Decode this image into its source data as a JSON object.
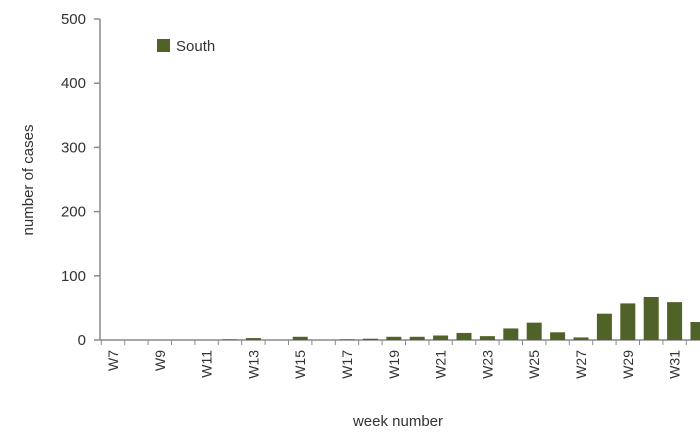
{
  "chart_data": {
    "type": "bar",
    "title": "",
    "xlabel": "week number",
    "ylabel": "number of cases",
    "ylim": [
      0,
      500
    ],
    "yticks": [
      0,
      100,
      200,
      300,
      400,
      500
    ],
    "legend_position": "top-left",
    "grid": false,
    "categories": [
      "W7",
      "W8",
      "W9",
      "W10",
      "W11",
      "W12",
      "W13",
      "W14",
      "W15",
      "W16",
      "W17",
      "W18",
      "W19",
      "W20",
      "W21",
      "W22",
      "W23",
      "W24",
      "W25",
      "W26",
      "W27",
      "W28",
      "W29",
      "W30",
      "W31",
      "W32"
    ],
    "tick_labels": [
      "W7",
      "W9",
      "W11",
      "W13",
      "W15",
      "W17",
      "W19",
      "W21",
      "W23",
      "W25",
      "W27",
      "W29",
      "W31"
    ],
    "series": [
      {
        "name": "South",
        "color": "#4f6228",
        "values": [
          0,
          0,
          0,
          0,
          0,
          1,
          3,
          0,
          5,
          0,
          1,
          2,
          5,
          5,
          7,
          11,
          6,
          18,
          27,
          12,
          4,
          41,
          57,
          67,
          59,
          28
        ]
      }
    ]
  }
}
